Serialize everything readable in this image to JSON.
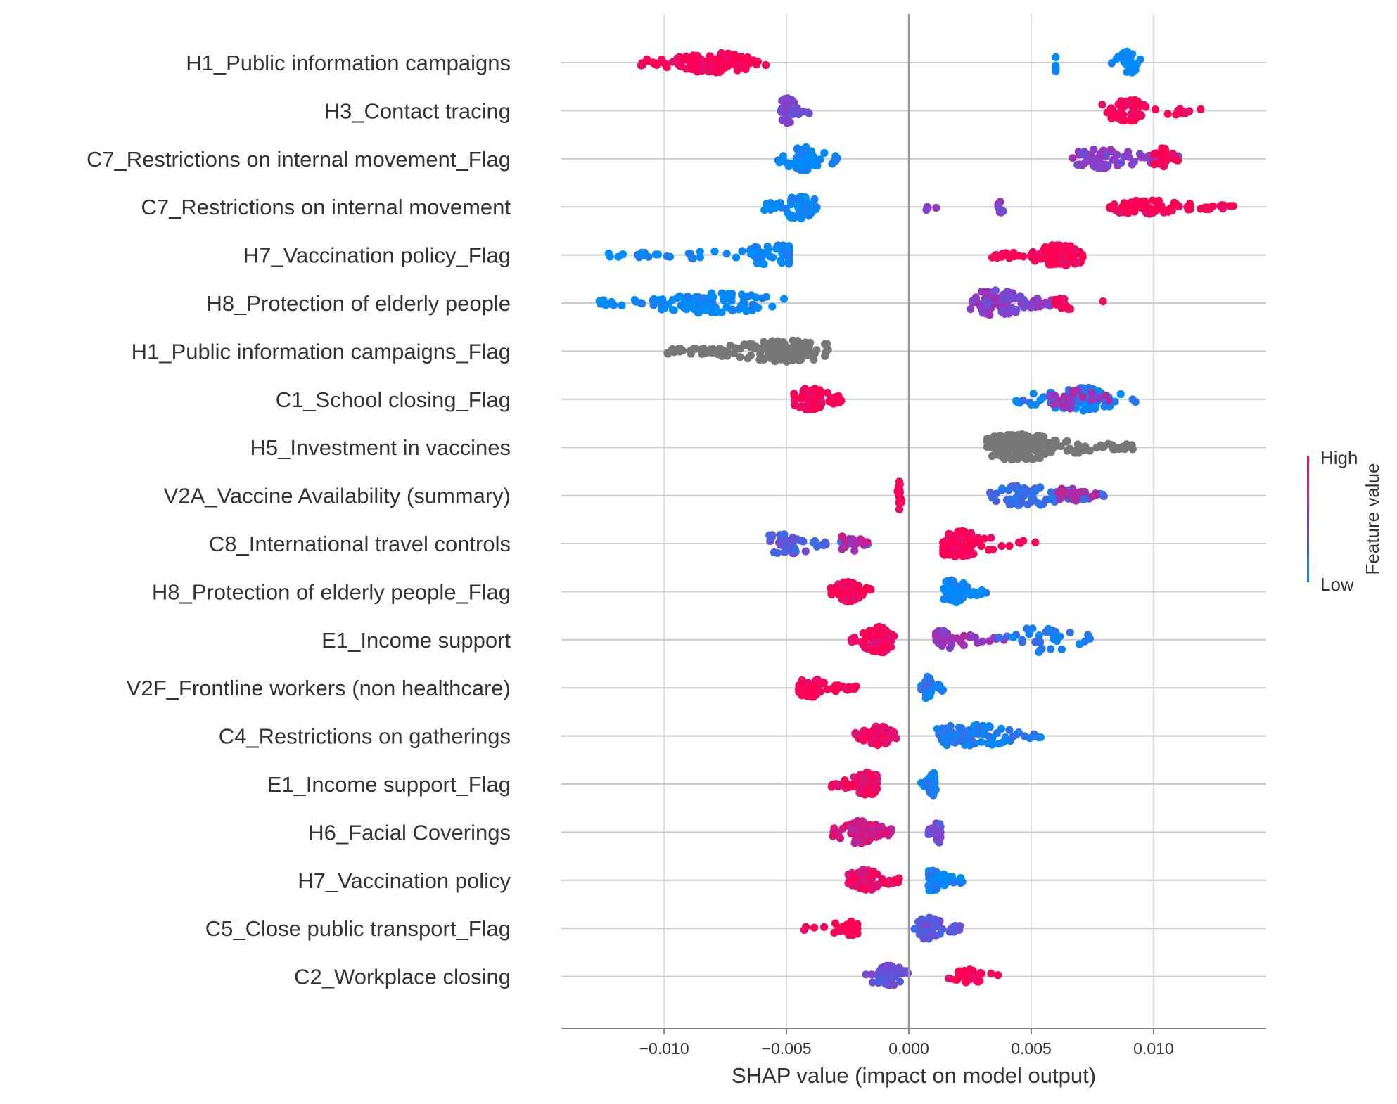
{
  "chart_data": {
    "type": "scatter",
    "xlabel": "SHAP value (impact on model output)",
    "x_ticks": [
      -0.01,
      -0.005,
      0.0,
      0.005,
      0.01
    ],
    "x_tick_labels": [
      "−0.010",
      "−0.005",
      "0.000",
      "0.005",
      "0.010"
    ],
    "xlim": [
      -0.0142,
      0.0146
    ],
    "grid": true,
    "colorbar": {
      "title": "Feature value",
      "high_label": "High",
      "low_label": "Low",
      "high_color": "#ff0052",
      "low_color": "#008bfb"
    },
    "missing_color": "#777777",
    "features": [
      {
        "name": "H1_Public information campaigns",
        "clusters": [
          {
            "min": -0.011,
            "max": -0.0058,
            "center": -0.008,
            "count": 130,
            "width": 0.42,
            "hue": 1.0
          },
          {
            "min": 0.006,
            "max": 0.006,
            "center": 0.006,
            "count": 8,
            "width": 0.4,
            "hue": 0.0
          },
          {
            "min": 0.0082,
            "max": 0.0096,
            "center": 0.009,
            "count": 30,
            "width": 0.48,
            "hue": 0.0
          }
        ]
      },
      {
        "name": "H3_Contact tracing",
        "clusters": [
          {
            "min": -0.0053,
            "max": -0.004,
            "center": -0.005,
            "count": 30,
            "width": 0.55,
            "hue": 0.4
          },
          {
            "min": 0.0079,
            "max": 0.012,
            "center": 0.009,
            "count": 60,
            "width": 0.45,
            "hue": 1.0
          }
        ]
      },
      {
        "name": "C7_Restrictions on internal movement_Flag",
        "clusters": [
          {
            "min": -0.0054,
            "max": -0.0029,
            "center": -0.0042,
            "count": 70,
            "width": 0.5,
            "hue": 0.0
          },
          {
            "min": 0.0065,
            "max": 0.0112,
            "center": 0.0078,
            "count": 70,
            "width": 0.42,
            "hue": 0.5
          },
          {
            "min": 0.01,
            "max": 0.011,
            "center": 0.0104,
            "count": 25,
            "width": 0.5,
            "hue": 1.0
          }
        ]
      },
      {
        "name": "C7_Restrictions on internal movement",
        "clusters": [
          {
            "min": -0.006,
            "max": -0.0037,
            "center": -0.0045,
            "count": 60,
            "width": 0.5,
            "hue": 0.0
          },
          {
            "min": 0.0005,
            "max": 0.0013,
            "center": 0.001,
            "count": 4,
            "width": 0.25,
            "hue": 0.5
          },
          {
            "min": 0.0036,
            "max": 0.004,
            "center": 0.0038,
            "count": 8,
            "width": 0.3,
            "hue": 0.5
          },
          {
            "min": 0.0082,
            "max": 0.0133,
            "center": 0.0095,
            "count": 80,
            "width": 0.3,
            "hue": 1.0
          }
        ]
      },
      {
        "name": "H7_Vaccination policy_Flag",
        "clusters": [
          {
            "min": -0.0123,
            "max": -0.0049,
            "center": -0.0053,
            "count": 80,
            "width": 0.42,
            "hue": 0.0
          },
          {
            "min": 0.0034,
            "max": 0.0071,
            "center": 0.0062,
            "count": 110,
            "width": 0.45,
            "hue": 1.0
          }
        ]
      },
      {
        "name": "H8_Protection of elderly people",
        "clusters": [
          {
            "min": -0.0128,
            "max": -0.0051,
            "center": -0.008,
            "count": 110,
            "width": 0.42,
            "hue": 0.0
          },
          {
            "min": 0.0025,
            "max": 0.0062,
            "center": 0.0035,
            "count": 100,
            "width": 0.55,
            "hue": 0.5
          },
          {
            "min": 0.006,
            "max": 0.0083,
            "center": 0.0062,
            "count": 14,
            "width": 0.3,
            "hue": 1.0
          }
        ]
      },
      {
        "name": "H1_Public information campaigns_Flag",
        "clusters": [
          {
            "min": -0.0099,
            "max": -0.0033,
            "center": -0.005,
            "count": 150,
            "width": 0.45,
            "hue": -1
          }
        ]
      },
      {
        "name": "C1_School closing_Flag",
        "clusters": [
          {
            "min": -0.0048,
            "max": -0.0027,
            "center": -0.004,
            "count": 65,
            "width": 0.48,
            "hue": 1.0
          },
          {
            "min": 0.0043,
            "max": 0.0093,
            "center": 0.007,
            "count": 85,
            "width": 0.5,
            "hue": 0.1
          },
          {
            "min": 0.0048,
            "max": 0.0088,
            "center": 0.0065,
            "count": 25,
            "width": 0.4,
            "hue": 0.6
          }
        ]
      },
      {
        "name": "H5_Investment in vaccines",
        "clusters": [
          {
            "min": 0.0032,
            "max": 0.0092,
            "center": 0.0045,
            "count": 200,
            "width": 0.55,
            "hue": -1
          }
        ]
      },
      {
        "name": "V2A_Vaccine Availability (summary)",
        "clusters": [
          {
            "min": -0.0005,
            "max": -0.0003,
            "center": -0.0004,
            "count": 25,
            "width": 0.6,
            "hue": 1.0
          },
          {
            "min": 0.0033,
            "max": 0.008,
            "center": 0.0048,
            "count": 80,
            "width": 0.45,
            "hue": 0.2
          },
          {
            "min": 0.006,
            "max": 0.008,
            "center": 0.0065,
            "count": 20,
            "width": 0.35,
            "hue": 0.6
          }
        ]
      },
      {
        "name": "C8_International travel controls",
        "clusters": [
          {
            "min": -0.0057,
            "max": -0.0016,
            "center": -0.005,
            "count": 60,
            "width": 0.42,
            "hue": 0.3
          },
          {
            "min": -0.003,
            "max": -0.0016,
            "center": -0.0025,
            "count": 15,
            "width": 0.4,
            "hue": 0.7
          },
          {
            "min": 0.0014,
            "max": 0.0054,
            "center": 0.002,
            "count": 90,
            "width": 0.55,
            "hue": 1.0
          }
        ]
      },
      {
        "name": "H8_Protection of elderly people_Flag",
        "clusters": [
          {
            "min": -0.0032,
            "max": -0.0015,
            "center": -0.0025,
            "count": 60,
            "width": 0.42,
            "hue": 1.0
          },
          {
            "min": 0.0014,
            "max": 0.0032,
            "center": 0.0018,
            "count": 60,
            "width": 0.5,
            "hue": 0.0
          }
        ]
      },
      {
        "name": "E1_Income support",
        "clusters": [
          {
            "min": -0.0025,
            "max": -0.0004,
            "center": -0.0012,
            "count": 90,
            "width": 0.55,
            "hue": 0.95
          },
          {
            "min": 0.0011,
            "max": 0.004,
            "center": 0.0015,
            "count": 40,
            "width": 0.42,
            "hue": 0.55
          },
          {
            "min": 0.0035,
            "max": 0.0076,
            "center": 0.0055,
            "count": 35,
            "width": 0.55,
            "hue": 0.1
          }
        ]
      },
      {
        "name": "V2F_Frontline workers  (non healthcare)",
        "clusters": [
          {
            "min": -0.0045,
            "max": -0.0021,
            "center": -0.004,
            "count": 70,
            "width": 0.38,
            "hue": 1.0
          },
          {
            "min": 0.0005,
            "max": 0.0014,
            "center": 0.0008,
            "count": 40,
            "width": 0.48,
            "hue": 0.1
          }
        ]
      },
      {
        "name": "C4_Restrictions on gatherings",
        "clusters": [
          {
            "min": -0.0022,
            "max": -0.0004,
            "center": -0.0012,
            "count": 80,
            "width": 0.42,
            "hue": 0.95
          },
          {
            "min": 0.0011,
            "max": 0.0056,
            "center": 0.0025,
            "count": 90,
            "width": 0.5,
            "hue": 0.1
          }
        ]
      },
      {
        "name": "E1_Income support_Flag",
        "clusters": [
          {
            "min": -0.0032,
            "max": -0.0013,
            "center": -0.0017,
            "count": 80,
            "width": 0.48,
            "hue": 0.95
          },
          {
            "min": 0.0005,
            "max": 0.0011,
            "center": 0.001,
            "count": 30,
            "width": 0.48,
            "hue": 0.05
          }
        ]
      },
      {
        "name": "H6_Facial Coverings",
        "clusters": [
          {
            "min": -0.0032,
            "max": -0.0007,
            "center": -0.002,
            "count": 90,
            "width": 0.48,
            "hue": 0.8
          },
          {
            "min": 0.0008,
            "max": 0.0014,
            "center": 0.0012,
            "count": 30,
            "width": 0.45,
            "hue": 0.4
          }
        ]
      },
      {
        "name": "H7_Vaccination policy",
        "clusters": [
          {
            "min": -0.0025,
            "max": -0.0004,
            "center": -0.0018,
            "count": 80,
            "width": 0.45,
            "hue": 0.9
          },
          {
            "min": 0.0008,
            "max": 0.0022,
            "center": 0.001,
            "count": 35,
            "width": 0.48,
            "hue": 0.05
          }
        ]
      },
      {
        "name": "C5_Close public transport_Flag",
        "clusters": [
          {
            "min": -0.0046,
            "max": -0.0021,
            "center": -0.0024,
            "count": 35,
            "width": 0.3,
            "hue": 1.0
          },
          {
            "min": 0.0001,
            "max": 0.0021,
            "center": 0.0008,
            "count": 60,
            "width": 0.45,
            "hue": 0.3
          }
        ]
      },
      {
        "name": "C2_Workplace closing",
        "clusters": [
          {
            "min": -0.0018,
            "max": 0.0001,
            "center": -0.0008,
            "count": 45,
            "width": 0.48,
            "hue": 0.35
          },
          {
            "min": 0.0013,
            "max": 0.0037,
            "center": 0.0025,
            "count": 35,
            "width": 0.3,
            "hue": 1.0
          }
        ]
      }
    ]
  }
}
